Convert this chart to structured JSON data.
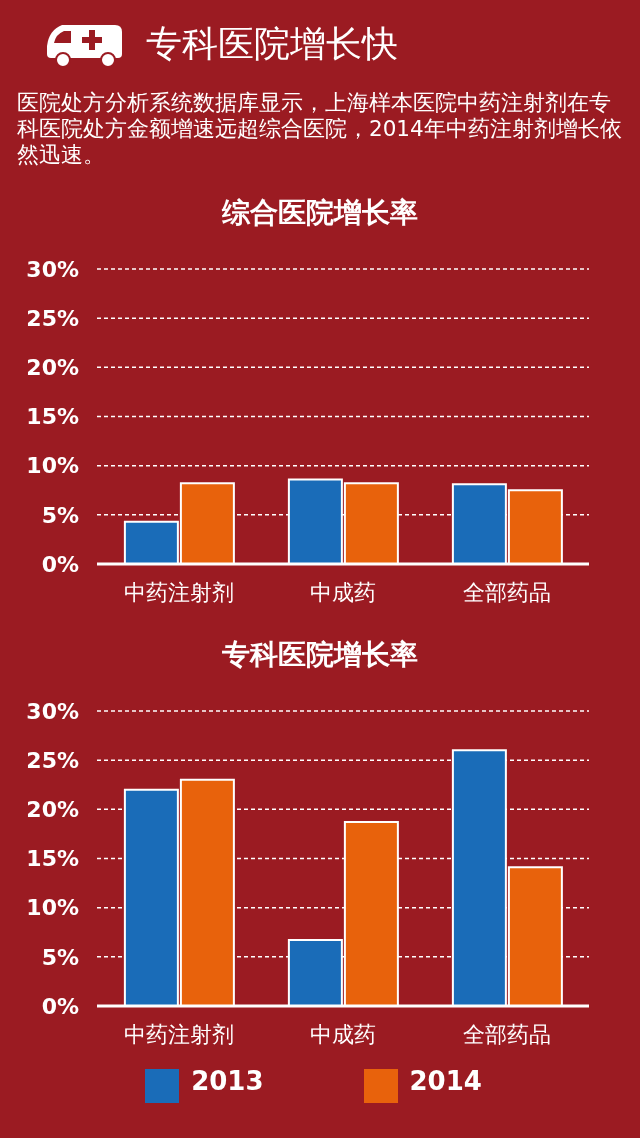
{
  "chart_data": [
    {
      "type": "other",
      "title": "专科医院增长快",
      "subtitle": "医院处方分析系统数据库显示，上海样本医院中药注射剂在专科医院处方金额增速远超综合医院，2014年中药注射剂增长依然迅速。"
    },
    {
      "type": "bar",
      "title": "综合医院增长率",
      "categories": [
        "中药注射剂",
        "中成药",
        "全部药品"
      ],
      "series": [
        {
          "color": "#1a6cb8",
          "values": [
            4.3,
            8.6,
            8.1
          ]
        },
        {
          "color": "#e8620c",
          "values": [
            8.2,
            8.2,
            7.5
          ]
        }
      ],
      "ylim": [
        0,
        30
      ],
      "yticks": [
        {
          "value": 0,
          "label": "0%"
        },
        {
          "value": 5,
          "label": "5%"
        },
        {
          "value": 10,
          "label": "10%"
        },
        {
          "value": 15,
          "label": "15%"
        },
        {
          "value": 20,
          "label": "20%"
        },
        {
          "value": 25,
          "label": "25%"
        },
        {
          "value": 30,
          "label": "30%"
        }
      ],
      "grid": "y"
    },
    {
      "type": "bar",
      "title": "专科医院增长率",
      "categories": [
        "中药注射剂",
        "中成药",
        "全部药品"
      ],
      "series": [
        {
          "name": "2013",
          "color": "#1a6cb8",
          "values": [
            22.0,
            6.7,
            26.0
          ]
        },
        {
          "name": "2014",
          "color": "#e8620c",
          "values": [
            23.0,
            18.7,
            14.1
          ]
        }
      ],
      "ylim": [
        0,
        30
      ],
      "yticks": [
        {
          "value": 0,
          "label": "0%"
        },
        {
          "value": 5,
          "label": "5%"
        },
        {
          "value": 10,
          "label": "10%"
        },
        {
          "value": 15,
          "label": "15%"
        },
        {
          "value": 20,
          "label": "20%"
        },
        {
          "value": 25,
          "label": "25%"
        },
        {
          "value": 30,
          "label": "30%"
        }
      ],
      "grid": "y",
      "legend": "bottom"
    }
  ]
}
